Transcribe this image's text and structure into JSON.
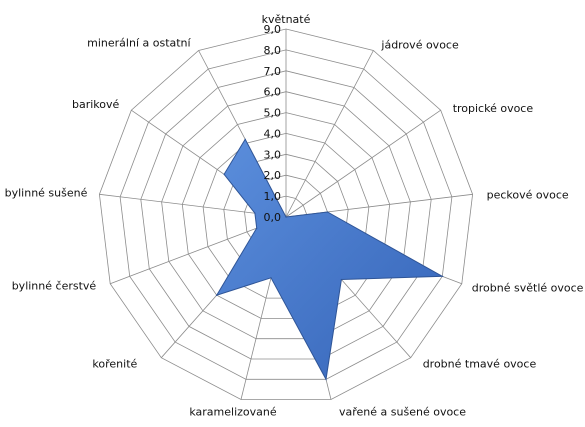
{
  "chart_data": {
    "type": "radar",
    "title": "",
    "categories": [
      "květnaté",
      "jádrové ovoce",
      "tropické ovoce",
      "peckové ovoce",
      "drobné světlé ovoce",
      "drobné tmavé ovoce",
      "vařené a sušené ovoce",
      "karamelizované",
      "kořenité",
      "bylinné čerstvé",
      "bylinné sušené",
      "barikové",
      "minerální a ostatní"
    ],
    "series": [
      {
        "values": [
          0.0,
          0.0,
          0.0,
          2.0,
          8.0,
          4.0,
          8.0,
          3.0,
          5.0,
          1.5,
          1.5,
          3.6,
          4.2
        ]
      }
    ],
    "rlim": [
      0,
      9
    ],
    "ticks": [
      "0,0",
      "1,0",
      "2,0",
      "3,0",
      "4,0",
      "5,0",
      "6,0",
      "7,0",
      "8,0",
      "9,0"
    ],
    "grid": true,
    "colors": {
      "fill": "#4472C4",
      "stroke": "#2F5597",
      "grid": "#8C8C8C"
    }
  }
}
